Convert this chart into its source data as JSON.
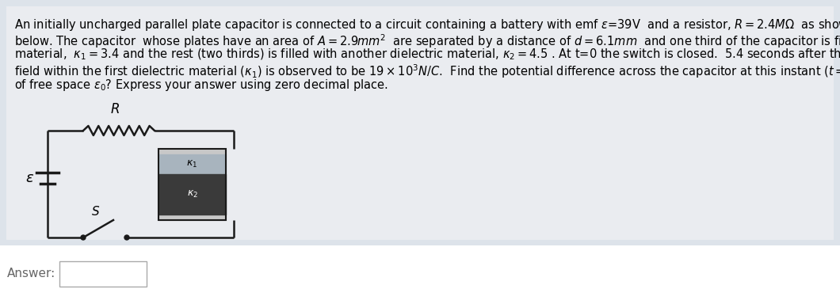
{
  "background_color": "#dde3ea",
  "text_background": "#dde3ea",
  "main_background": "#ffffff",
  "answer_background": "#f5f5f5",
  "wire_color": "#1a1a1a",
  "wire_lw": 1.8,
  "cap_plate_color": "#c8c8c8",
  "cap_k1_color": "#a8b4be",
  "cap_k2_color": "#3a3a3a",
  "cap_border_color": "#1a1a1a",
  "font_size_main": 10.5,
  "answer_label": "Answer:"
}
